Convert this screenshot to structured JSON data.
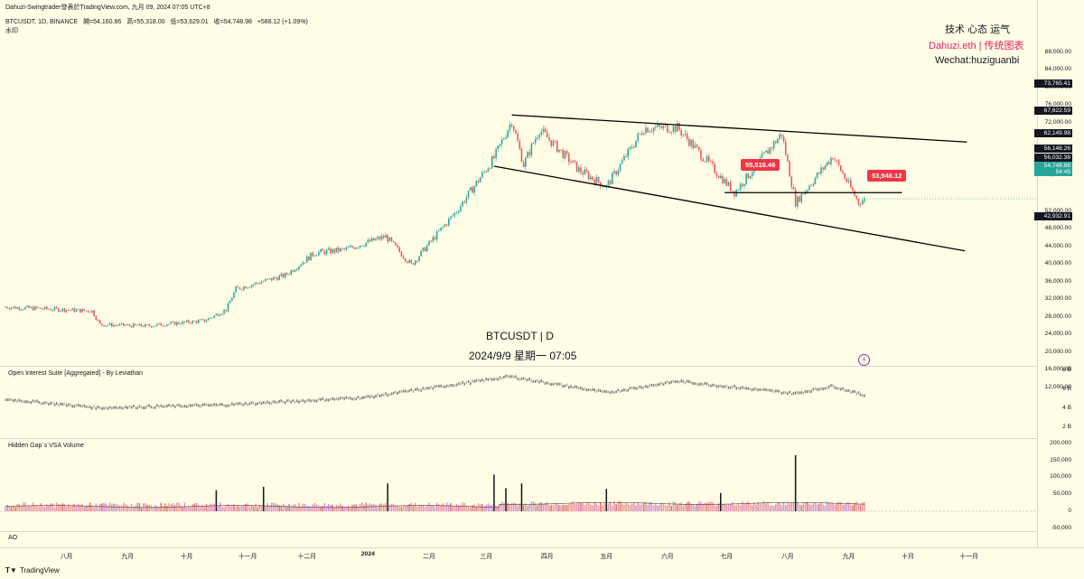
{
  "header": {
    "author_line": "Dahuzi-Swingtrader發表於TradingView.com,  九月 09, 2024 07:05 UTC+8",
    "symbol_line": "BTCUSDT, 1D, BINANCE",
    "open": "開=54,160.86",
    "high": "高=55,318.00",
    "low": "低=53,629.01",
    "close": "收=54,748.98",
    "change": "+588.12 (+1.09%)",
    "sub": "水印"
  },
  "watermark": {
    "line1": "技术 心态 运气",
    "line2": "Dahuzi.eth | 传统图表",
    "line3": "Wechat:huziguanbi",
    "center_title": "BTCUSDT | D",
    "center_date": "2024/9/9 星期一 07:05"
  },
  "tags": {
    "tag_a": "55,516.46",
    "tag_b": "53,946.12"
  },
  "price_axis": {
    "ticks": [
      "88,000.00",
      "84,000.00",
      "80,000.00",
      "76,000.00",
      "72,000.00",
      "64,000.00",
      "60,000.00",
      "52,000.00",
      "48,000.00",
      "44,000.00",
      "40,000.00",
      "36,000.00",
      "32,000.00",
      "28,000.00",
      "24,000.00",
      "20,000.00",
      "16,000.00",
      "12,000.00"
    ],
    "tag_73765": "73,765.41",
    "tag_67622": "67,622.59",
    "tag_62149": "62,149.98",
    "tag_56148": "56,148.26",
    "tag_56032": "56,032.36",
    "tag_54748": "54,748.98",
    "tag_countdown": "54:45",
    "tag_42932": "42,932.91"
  },
  "oi_pane": {
    "label": "Open Interest Suite [Aggregated] - By Leviathan",
    "ticks": [
      "8 B",
      "6 B",
      "4 B",
      "2 B"
    ]
  },
  "vol_pane": {
    "label": "Hidden Gap`s VSA Volume",
    "ticks": [
      "200,000",
      "150,000",
      "100,000",
      "50,000",
      "0",
      "-50,000"
    ]
  },
  "ao_pane": {
    "label": "AO"
  },
  "time_axis": {
    "labels": [
      "八月",
      "九月",
      "十月",
      "十一月",
      "十二月",
      "2024",
      "二月",
      "三月",
      "四月",
      "五月",
      "六月",
      "七月",
      "八月",
      "九月",
      "十月",
      "十一月"
    ]
  },
  "footer": {
    "brand": "TradingView"
  },
  "colors": {
    "up": "#26a69a",
    "down": "#ef5350",
    "bg": "#fffde6",
    "tag_red": "#f23645",
    "tag_green": "#26a69a"
  },
  "chart_data": {
    "type": "candlestick",
    "symbol": "BTCUSDT",
    "interval": "1D",
    "ylim": [
      10000,
      90000
    ],
    "anchors": [
      {
        "date": "2023-07-01",
        "price": 30200
      },
      {
        "date": "2023-08-14",
        "price": 29300
      },
      {
        "date": "2023-08-18",
        "price": 26200
      },
      {
        "date": "2023-09-10",
        "price": 25900
      },
      {
        "date": "2023-10-10",
        "price": 27100
      },
      {
        "date": "2023-10-21",
        "price": 29600
      },
      {
        "date": "2023-10-26",
        "price": 34300
      },
      {
        "date": "2023-11-20",
        "price": 37400
      },
      {
        "date": "2023-12-05",
        "price": 42500
      },
      {
        "date": "2023-12-20",
        "price": 43200
      },
      {
        "date": "2024-01-10",
        "price": 46200
      },
      {
        "date": "2024-01-23",
        "price": 39800
      },
      {
        "date": "2024-02-15",
        "price": 52000
      },
      {
        "date": "2024-03-05",
        "price": 64000
      },
      {
        "date": "2024-03-14",
        "price": 72500
      },
      {
        "date": "2024-03-20",
        "price": 62500
      },
      {
        "date": "2024-03-28",
        "price": 70500
      },
      {
        "date": "2024-04-17",
        "price": 61300
      },
      {
        "date": "2024-05-01",
        "price": 57500
      },
      {
        "date": "2024-05-20",
        "price": 70800
      },
      {
        "date": "2024-06-06",
        "price": 70900
      },
      {
        "date": "2024-07-05",
        "price": 56200
      },
      {
        "date": "2024-07-29",
        "price": 69500
      },
      {
        "date": "2024-08-05",
        "price": 53900
      },
      {
        "date": "2024-08-24",
        "price": 64500
      },
      {
        "date": "2024-09-06",
        "price": 53900
      },
      {
        "date": "2024-09-09",
        "price": 54748.98
      }
    ],
    "trendlines": [
      {
        "from": {
          "date": "2024-03-14",
          "price": 73765.41
        },
        "to": {
          "date": "2024-10-31",
          "price": 67622.59
        }
      },
      {
        "from": {
          "date": "2024-03-05",
          "price": 62149.98
        },
        "to": {
          "date": "2024-10-30",
          "price": 42932.91
        }
      },
      {
        "from": {
          "date": "2024-06-30",
          "price": 56148.26
        },
        "to": {
          "date": "2024-09-28",
          "price": 56148.26
        }
      }
    ],
    "oi_ylim": [
      1,
      8
    ],
    "oi_anchors": [
      {
        "date": "2023-07-01",
        "value": 4.9
      },
      {
        "date": "2023-08-18",
        "value": 4.0
      },
      {
        "date": "2023-10-20",
        "value": 4.3
      },
      {
        "date": "2023-12-31",
        "value": 5.1
      },
      {
        "date": "2024-03-13",
        "value": 7.3
      },
      {
        "date": "2024-05-01",
        "value": 5.6
      },
      {
        "date": "2024-06-06",
        "value": 6.8
      },
      {
        "date": "2024-08-05",
        "value": 5.5
      },
      {
        "date": "2024-08-24",
        "value": 6.3
      },
      {
        "date": "2024-09-09",
        "value": 5.3
      }
    ],
    "vol_ylim": [
      -60000,
      210000
    ],
    "vol_spikes": [
      {
        "date": "2023-10-16",
        "value": 62000
      },
      {
        "date": "2023-11-09",
        "value": 72000
      },
      {
        "date": "2024-01-11",
        "value": 82000
      },
      {
        "date": "2024-03-05",
        "value": 108000
      },
      {
        "date": "2024-03-11",
        "value": 68000
      },
      {
        "date": "2024-03-19",
        "value": 82000
      },
      {
        "date": "2024-05-01",
        "value": 66000
      },
      {
        "date": "2024-06-28",
        "value": 54000
      },
      {
        "date": "2024-08-05",
        "value": 165000
      }
    ]
  }
}
